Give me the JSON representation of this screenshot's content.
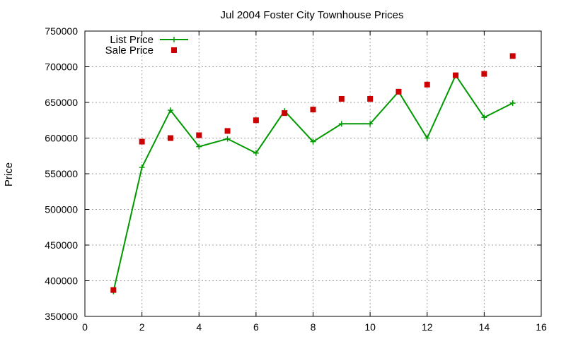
{
  "chart_data": {
    "type": "line",
    "title": "Jul 2004 Foster City Townhouse Prices",
    "xlabel": "",
    "ylabel": "Price",
    "xlim": [
      0,
      16
    ],
    "ylim": [
      350000,
      750000
    ],
    "x_ticks": [
      0,
      2,
      4,
      6,
      8,
      10,
      12,
      14,
      16
    ],
    "y_ticks": [
      350000,
      400000,
      450000,
      500000,
      550000,
      600000,
      650000,
      700000,
      750000
    ],
    "grid": true,
    "legend_position": "top-left",
    "series": [
      {
        "name": "List Price",
        "style": "line-with-plus-markers",
        "color": "#009900",
        "x": [
          1,
          2,
          3,
          4,
          5,
          6,
          7,
          8,
          9,
          10,
          11,
          12,
          13,
          14,
          15
        ],
        "values": [
          385000,
          559000,
          639000,
          588000,
          599000,
          579000,
          638000,
          595000,
          620000,
          620000,
          665000,
          600000,
          688000,
          629000,
          649000
        ]
      },
      {
        "name": "Sale Price",
        "style": "square-points",
        "color": "#cc0000",
        "x": [
          1,
          2,
          3,
          4,
          5,
          6,
          7,
          8,
          9,
          10,
          11,
          12,
          13,
          14,
          15
        ],
        "values": [
          387000,
          595000,
          600000,
          604000,
          610000,
          625000,
          635000,
          640000,
          655000,
          655000,
          665000,
          675000,
          688000,
          690000,
          715000
        ]
      }
    ]
  }
}
